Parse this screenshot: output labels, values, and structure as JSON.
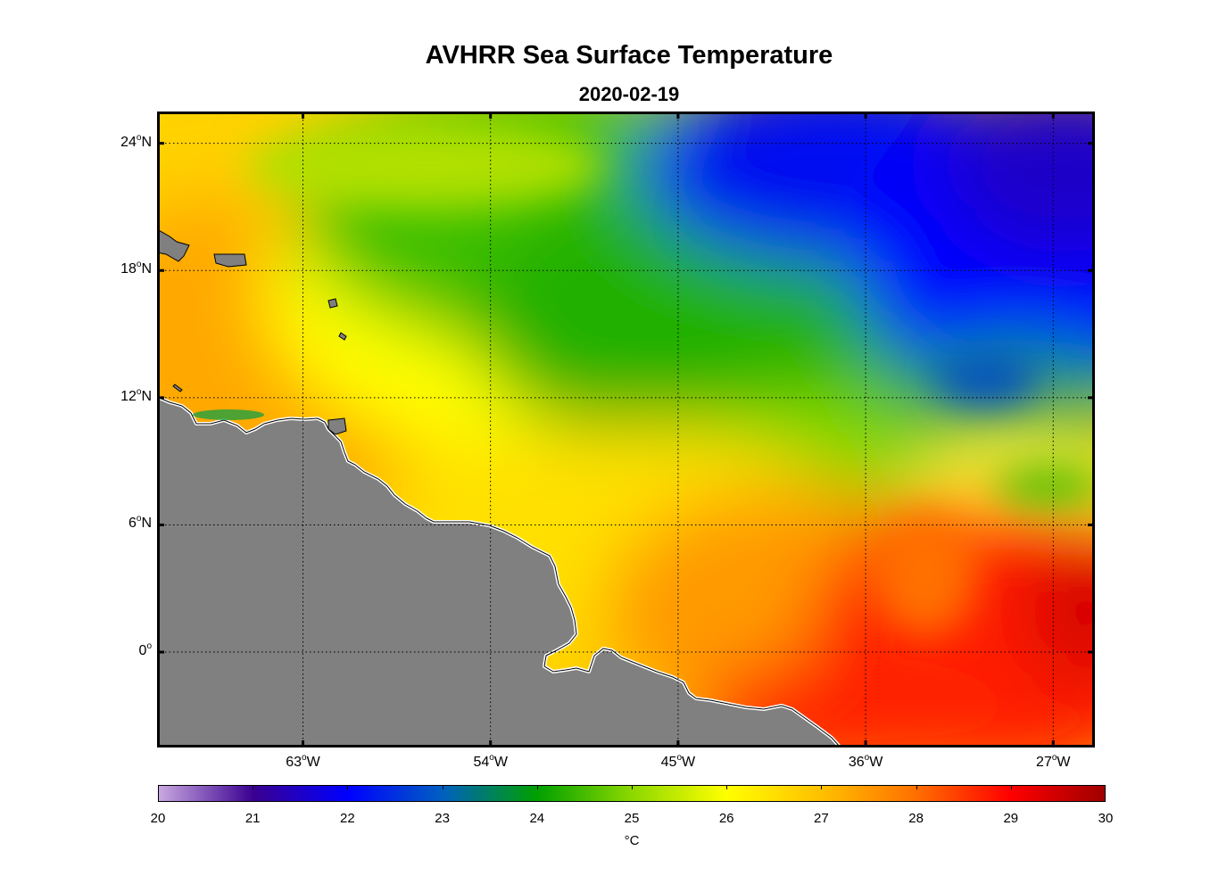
{
  "title": "AVHRR Sea Surface Temperature",
  "subtitle": "2020-02-19",
  "map": {
    "lon_range_deg": [
      -70,
      -25
    ],
    "lat_range_deg": [
      -4.5,
      25.5
    ],
    "land_color": "#808080",
    "lat_ticks": [
      {
        "value": 24,
        "label": "24",
        "hemi": "N"
      },
      {
        "value": 18,
        "label": "18",
        "hemi": "N"
      },
      {
        "value": 12,
        "label": "12",
        "hemi": "N"
      },
      {
        "value": 6,
        "label": "6",
        "hemi": "N"
      },
      {
        "value": 0,
        "label": "0",
        "hemi": ""
      }
    ],
    "lon_ticks": [
      {
        "value": -63,
        "label": "63",
        "hemi": "W"
      },
      {
        "value": -54,
        "label": "54",
        "hemi": "W"
      },
      {
        "value": -45,
        "label": "45",
        "hemi": "W"
      },
      {
        "value": -36,
        "label": "36",
        "hemi": "W"
      },
      {
        "value": -27,
        "label": "27",
        "hemi": "W"
      }
    ],
    "degree_symbol": "o"
  },
  "colorbar": {
    "min": 20,
    "max": 30,
    "tick_labels": [
      "20",
      "21",
      "22",
      "23",
      "24",
      "25",
      "26",
      "27",
      "28",
      "29",
      "30"
    ],
    "unit": "°C",
    "colors": [
      "#c8a8e0",
      "#3a0090",
      "#0000ff",
      "#0060c0",
      "#00a000",
      "#8cd800",
      "#ffff00",
      "#ffc000",
      "#ff7000",
      "#ff0000",
      "#a00000"
    ]
  }
}
